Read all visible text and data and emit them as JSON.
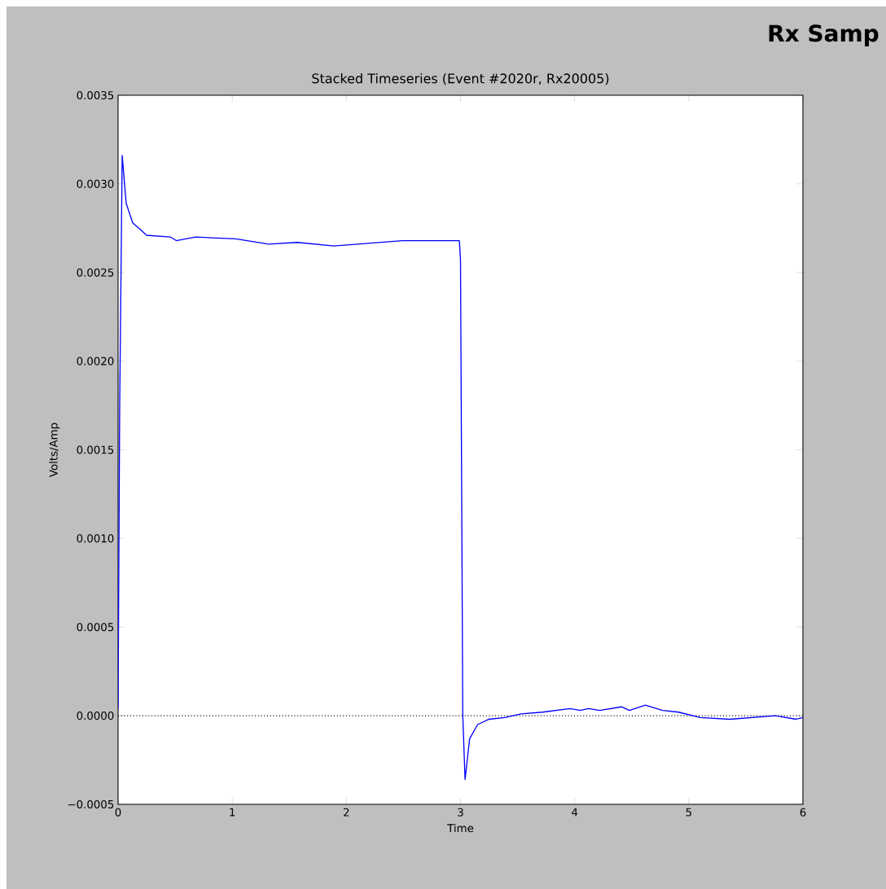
{
  "chart_data": {
    "type": "line",
    "title": "Stacked Timeseries (Event #2020r, Rx20005)",
    "xlabel": "Time",
    "ylabel": "Volts/Amp",
    "annotations": [
      "Rx Samp"
    ],
    "xlim": [
      0,
      6
    ],
    "ylim": [
      -0.0005,
      0.0035
    ],
    "xticks": [
      0,
      1,
      2,
      3,
      4,
      5,
      6
    ],
    "yticks": [
      {
        "value": -0.0005,
        "label": "−0.0005"
      },
      {
        "value": 0,
        "label": "0.0000"
      },
      0.0005,
      {
        "value": 0.001,
        "label": "0.0010"
      },
      0.0015,
      {
        "value": 0.002,
        "label": "0.0020"
      },
      0.0025,
      {
        "value": 0.003,
        "label": "0.0030"
      },
      0.0035
    ],
    "ref_lines": [
      {
        "axis": "y",
        "value": 0,
        "color": "#000000",
        "line_style": "dotted"
      }
    ],
    "series": [
      {
        "color": "#0000ff",
        "x": [
          0,
          0.014,
          0.036,
          0.071,
          0.128,
          0.2,
          0.25,
          0.46,
          0.51,
          0.68,
          1.03,
          1.32,
          1.57,
          1.89,
          2.1,
          2.49,
          2.91,
          2.99,
          3.0,
          3.02,
          3.04,
          3.08,
          3.15,
          3.25,
          3.39,
          3.53,
          3.72,
          3.96,
          4.05,
          4.12,
          4.22,
          4.41,
          4.48,
          4.62,
          4.77,
          4.91,
          5.1,
          5.36,
          5.76,
          5.94,
          6.0
        ],
        "values": [
          4e-05,
          0.00174,
          0.00316,
          0.00289,
          0.00278,
          0.00274,
          0.00271,
          0.0027,
          0.00268,
          0.0027,
          0.00269,
          0.00266,
          0.00267,
          0.00265,
          0.00266,
          0.00268,
          0.00268,
          0.00268,
          0.00257,
          0.0,
          -0.00036,
          -0.00013,
          -5e-05,
          -2e-05,
          -1e-05,
          1e-05,
          2e-05,
          4e-05,
          3e-05,
          4e-05,
          3e-05,
          5e-05,
          3e-05,
          6e-05,
          3e-05,
          2e-05,
          -1e-05,
          -2e-05,
          0.0,
          -2e-05,
          -1e-05
        ]
      }
    ]
  }
}
